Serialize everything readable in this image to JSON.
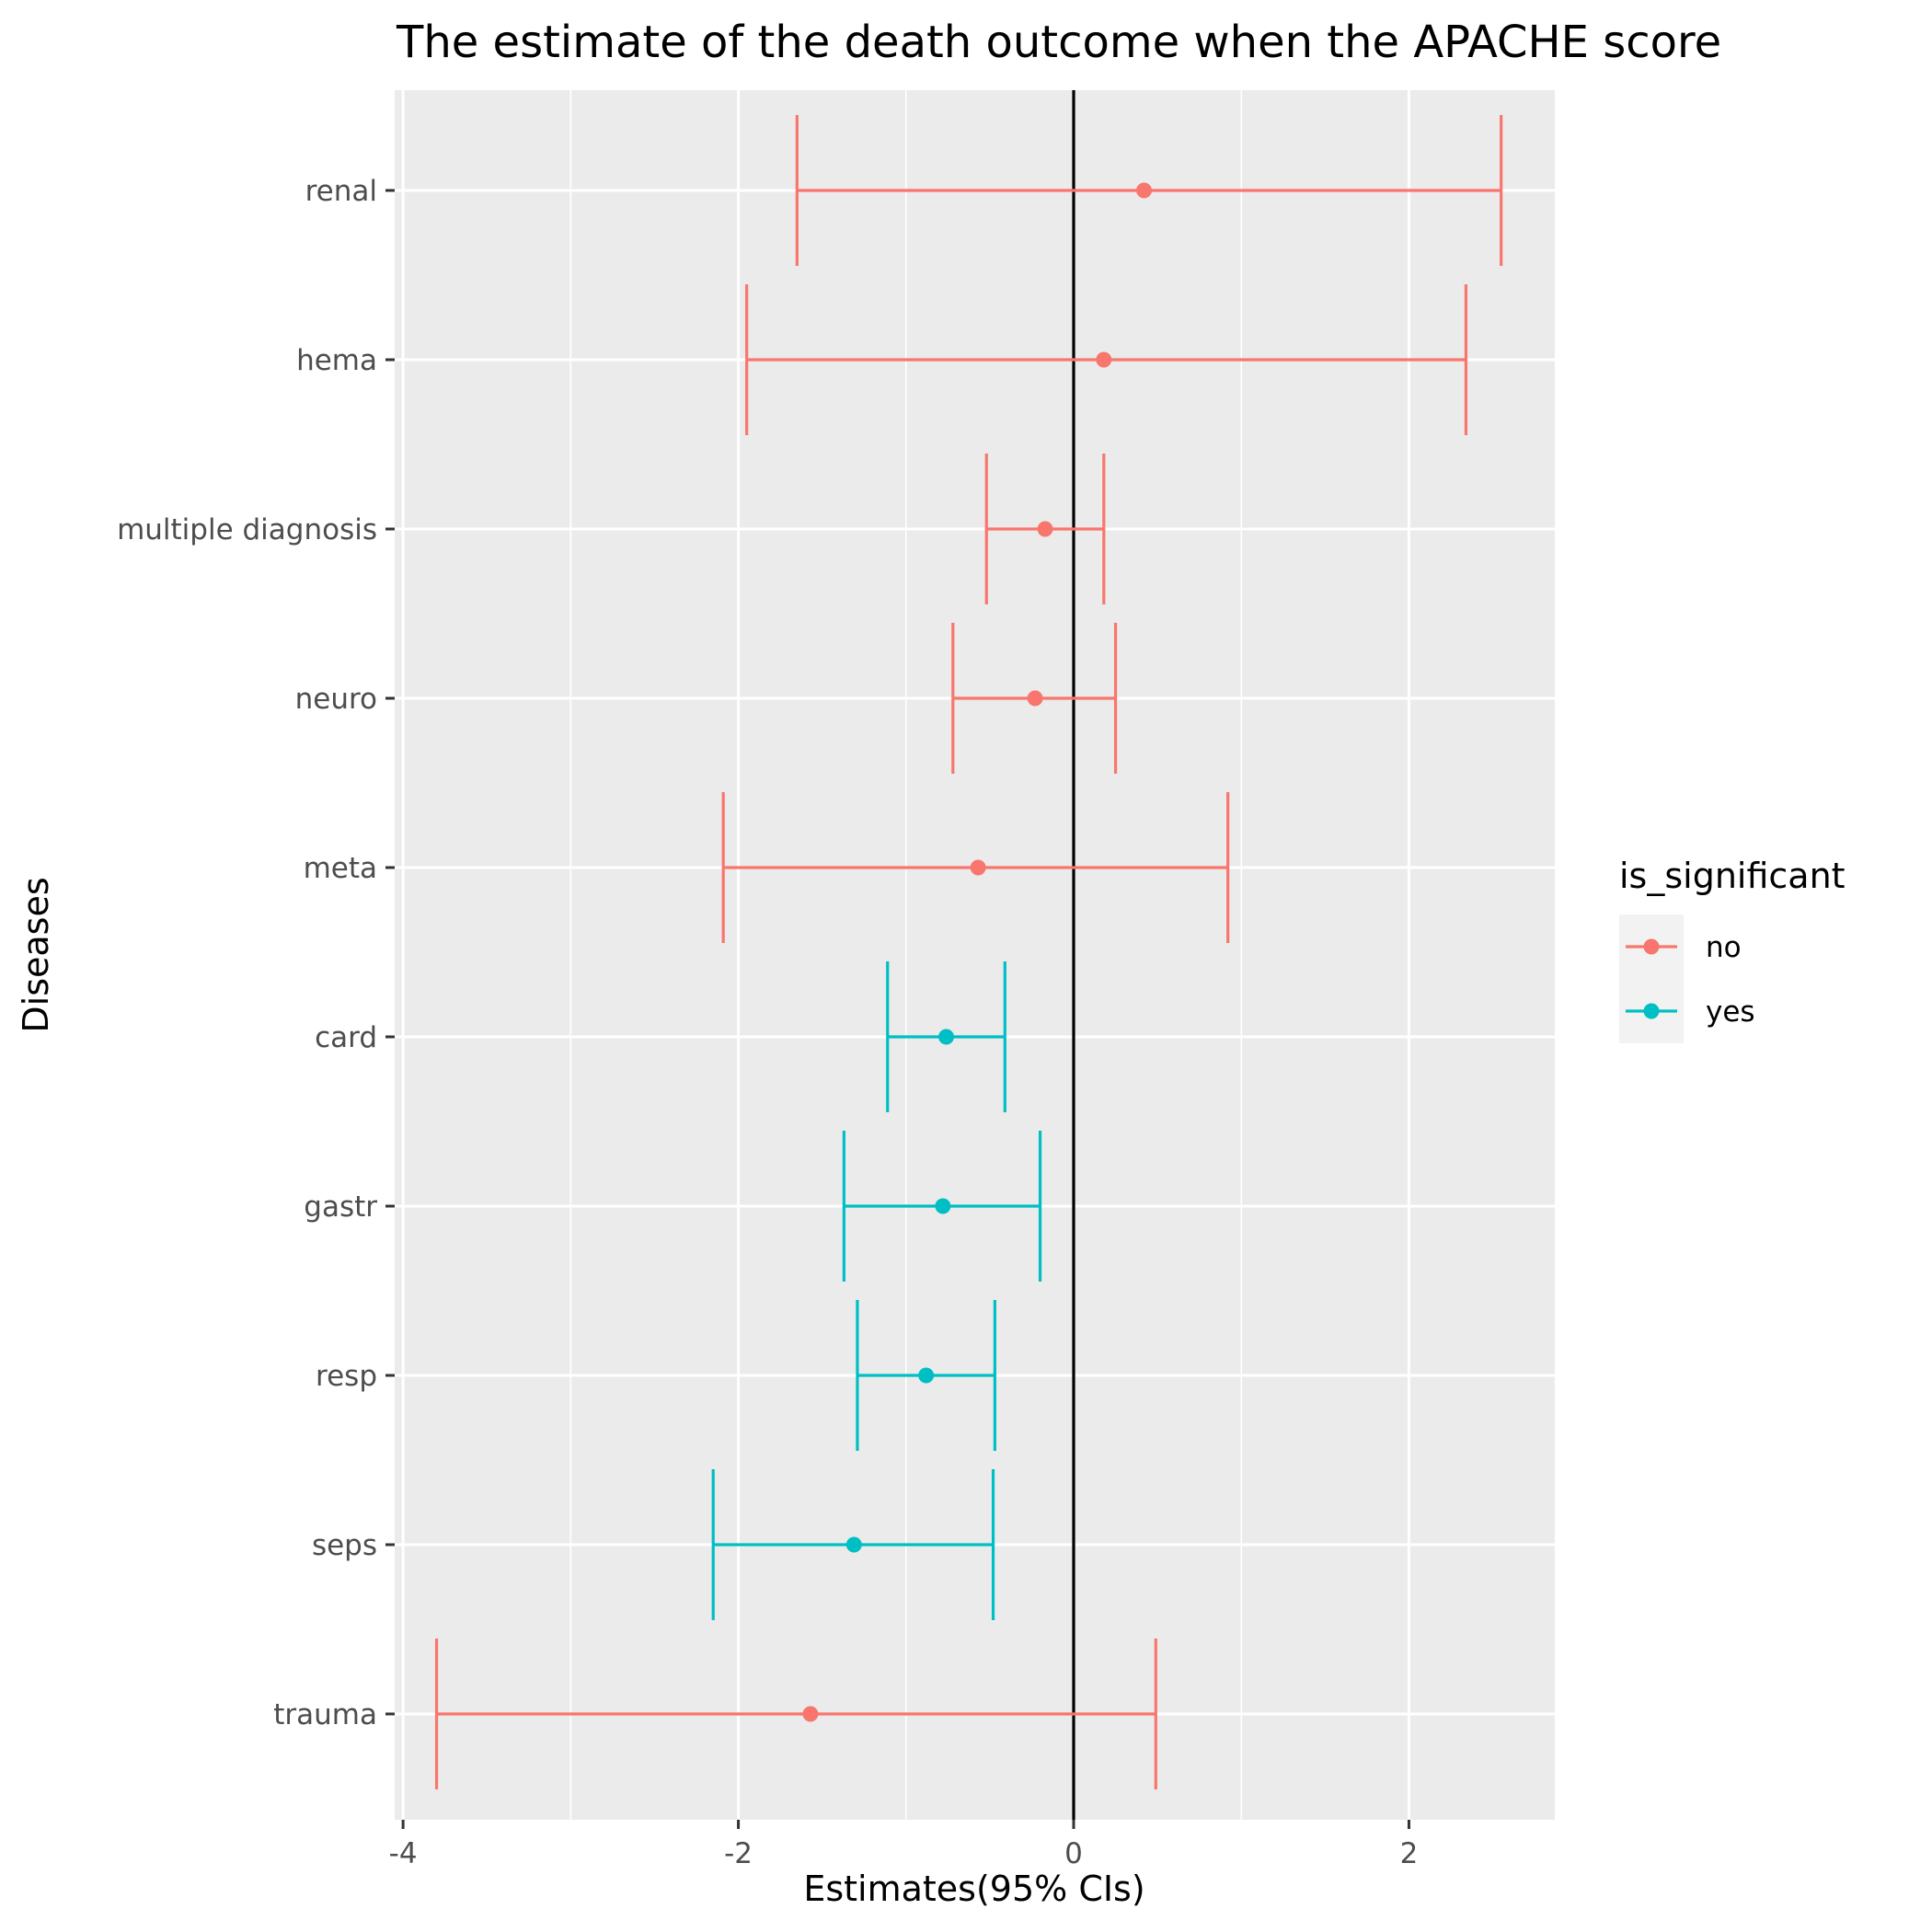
{
  "chart_data": {
    "type": "errorbar",
    "title": "The estimate of the death outcome when the APACHE score",
    "xlabel": "Estimates(95% CIs)",
    "ylabel": "Diseases",
    "xlim": [
      -4.05,
      2.87
    ],
    "x_ticks": [
      -4,
      -2,
      0,
      2
    ],
    "x_tick_labels": [
      "-4",
      "-2",
      "0",
      "2"
    ],
    "reference_line_x": 0,
    "grid": true,
    "categories": [
      "renal",
      "hema",
      "multiple diagnosis",
      "neuro",
      "meta",
      "card",
      "gastr",
      "resp",
      "seps",
      "trauma"
    ],
    "points": [
      {
        "category": "renal",
        "estimate": 0.42,
        "lower": -1.65,
        "upper": 2.55,
        "is_significant": "no"
      },
      {
        "category": "hema",
        "estimate": 0.18,
        "lower": -1.95,
        "upper": 2.34,
        "is_significant": "no"
      },
      {
        "category": "multiple diagnosis",
        "estimate": -0.17,
        "lower": -0.52,
        "upper": 0.18,
        "is_significant": "no"
      },
      {
        "category": "neuro",
        "estimate": -0.23,
        "lower": -0.72,
        "upper": 0.25,
        "is_significant": "no"
      },
      {
        "category": "meta",
        "estimate": -0.57,
        "lower": -2.09,
        "upper": 0.92,
        "is_significant": "no"
      },
      {
        "category": "card",
        "estimate": -0.76,
        "lower": -1.11,
        "upper": -0.41,
        "is_significant": "yes"
      },
      {
        "category": "gastr",
        "estimate": -0.78,
        "lower": -1.37,
        "upper": -0.2,
        "is_significant": "yes"
      },
      {
        "category": "resp",
        "estimate": -0.88,
        "lower": -1.29,
        "upper": -0.47,
        "is_significant": "yes"
      },
      {
        "category": "seps",
        "estimate": -1.31,
        "lower": -2.15,
        "upper": -0.48,
        "is_significant": "yes"
      },
      {
        "category": "trauma",
        "estimate": -1.57,
        "lower": -3.8,
        "upper": 0.49,
        "is_significant": "no"
      }
    ],
    "legend": {
      "title": "is_significant",
      "position": "right",
      "entries": [
        {
          "label": "no",
          "color": "#F8766D"
        },
        {
          "label": "yes",
          "color": "#00BFC4"
        }
      ]
    },
    "colors": {
      "no": "#F8766D",
      "yes": "#00BFC4",
      "panel": "#EBEBEB",
      "grid": "#FFFFFF",
      "reference_line": "#000000"
    }
  }
}
